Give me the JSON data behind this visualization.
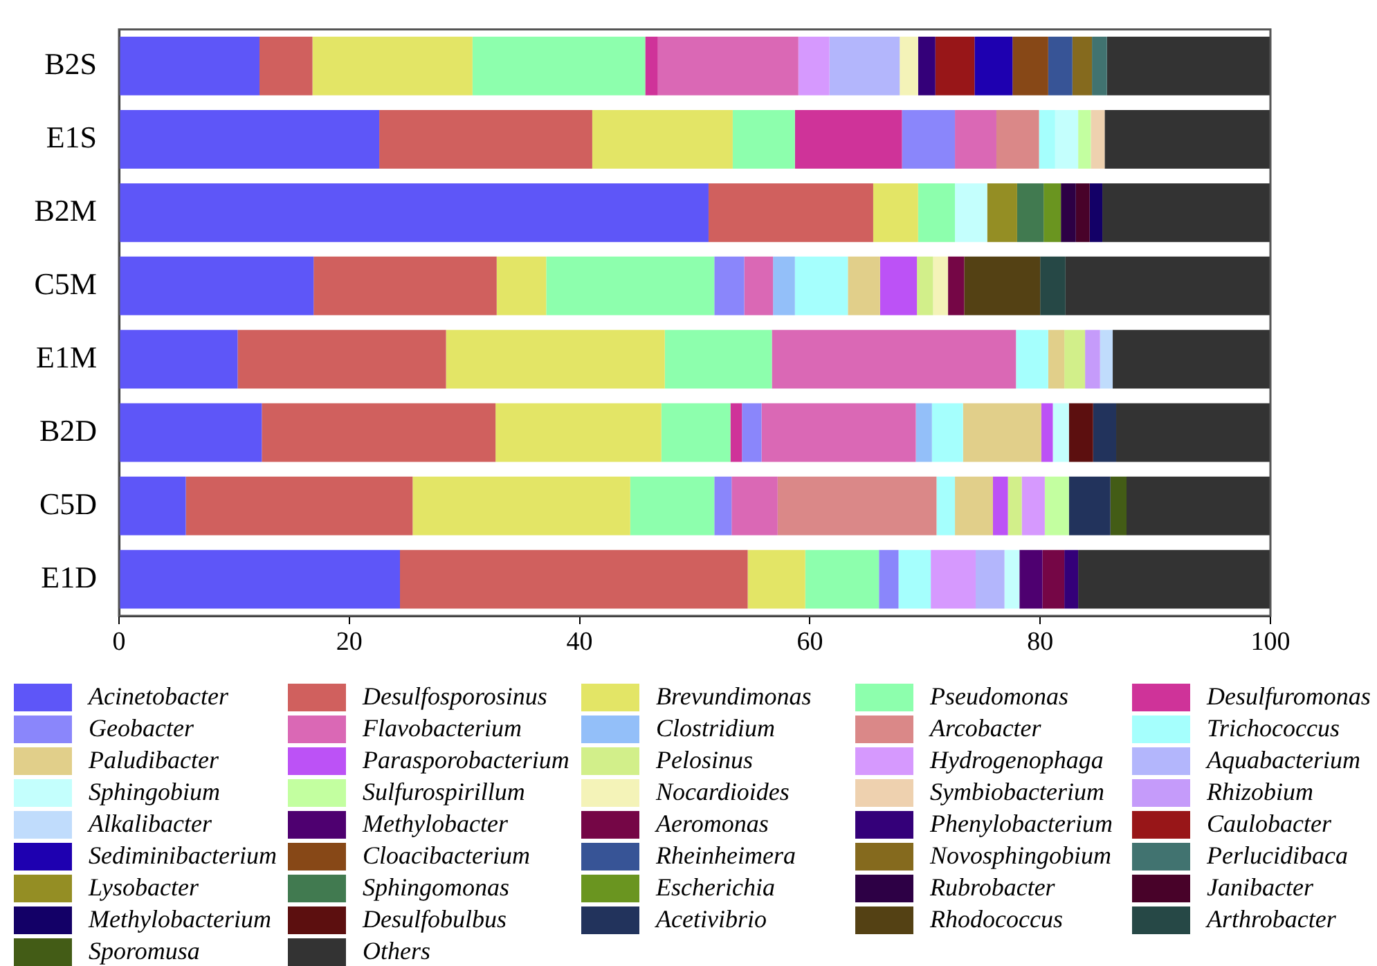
{
  "chart_data": {
    "type": "bar",
    "orientation": "horizontal",
    "stacked": true,
    "legend": "bottom",
    "categories": [
      "B2S",
      "E1S",
      "B2M",
      "C5M",
      "E1M",
      "B2D",
      "C5D",
      "E1D"
    ],
    "xlim": [
      0,
      100
    ],
    "xticks": [
      0,
      20,
      40,
      60,
      80,
      100
    ],
    "series": [
      {
        "name": "Acinetobacter",
        "color": "#5e56f8",
        "values": [
          12.2,
          22.6,
          51.2,
          16.9,
          10.3,
          12.4,
          5.8,
          24.4
        ]
      },
      {
        "name": "Desulfosporosinus",
        "color": "#d0605e",
        "values": [
          4.6,
          18.5,
          14.3,
          15.9,
          18.1,
          20.3,
          19.7,
          30.2
        ]
      },
      {
        "name": "Brevundimonas",
        "color": "#e3e566",
        "values": [
          13.9,
          12.2,
          3.9,
          4.3,
          19.0,
          14.4,
          18.9,
          5.0
        ]
      },
      {
        "name": "Pseudomonas",
        "color": "#8dffad",
        "values": [
          15.0,
          5.4,
          3.2,
          14.6,
          9.3,
          6.0,
          7.3,
          6.4
        ]
      },
      {
        "name": "Desulfuromonas",
        "color": "#cf3399",
        "values": [
          1.1,
          9.3,
          null,
          null,
          null,
          1.0,
          null,
          null
        ]
      },
      {
        "name": "Geobacter",
        "color": "#8a86fb",
        "values": [
          null,
          4.6,
          null,
          2.6,
          null,
          1.7,
          1.5,
          1.7
        ]
      },
      {
        "name": "Flavobacterium",
        "color": "#da68b5",
        "values": [
          12.2,
          3.6,
          null,
          2.5,
          21.2,
          13.4,
          4.0,
          null
        ]
      },
      {
        "name": "Clostridium",
        "color": "#93bff9",
        "values": [
          null,
          null,
          null,
          1.9,
          null,
          1.4,
          null,
          null
        ]
      },
      {
        "name": "Arcobacter",
        "color": "#da8888",
        "values": [
          null,
          3.7,
          null,
          null,
          null,
          null,
          13.8,
          null
        ]
      },
      {
        "name": "Trichococcus",
        "color": "#a5fffd",
        "values": [
          null,
          1.4,
          null,
          4.6,
          2.8,
          2.7,
          1.6,
          2.8
        ]
      },
      {
        "name": "Paludibacter",
        "color": "#e1cf8a",
        "values": [
          null,
          null,
          null,
          2.8,
          1.4,
          6.8,
          3.3,
          null
        ]
      },
      {
        "name": "Parasporobacterium",
        "color": "#bc52f6",
        "values": [
          null,
          null,
          null,
          3.2,
          null,
          1.0,
          1.3,
          null
        ]
      },
      {
        "name": "Pelosinus",
        "color": "#d2ef8a",
        "values": [
          null,
          null,
          null,
          1.4,
          1.8,
          null,
          1.2,
          null
        ]
      },
      {
        "name": "Hydrogenophaga",
        "color": "#d699fe",
        "values": [
          2.7,
          null,
          null,
          null,
          null,
          null,
          2.0,
          3.9
        ]
      },
      {
        "name": "Aquabacterium",
        "color": "#b3b6fc",
        "values": [
          6.1,
          null,
          null,
          null,
          null,
          null,
          null,
          2.5
        ]
      },
      {
        "name": "Sphingobium",
        "color": "#c4fffd",
        "values": [
          null,
          2.0,
          2.8,
          null,
          null,
          1.4,
          null,
          1.3
        ]
      },
      {
        "name": "Sulfurospirillum",
        "color": "#c3ffa0",
        "values": [
          null,
          1.1,
          null,
          null,
          null,
          null,
          2.1,
          null
        ]
      },
      {
        "name": "Nocardioides",
        "color": "#f4f3b8",
        "values": [
          1.6,
          null,
          null,
          1.3,
          null,
          null,
          null,
          null
        ]
      },
      {
        "name": "Symbiobacterium",
        "color": "#eed1af",
        "values": [
          null,
          1.2,
          null,
          null,
          null,
          null,
          null,
          null
        ]
      },
      {
        "name": "Rhizobium",
        "color": "#c59bfa",
        "values": [
          null,
          null,
          null,
          null,
          1.3,
          null,
          null,
          null
        ]
      },
      {
        "name": "Alkalibacter",
        "color": "#c0dcfc",
        "values": [
          null,
          null,
          null,
          null,
          1.1,
          null,
          null,
          null
        ]
      },
      {
        "name": "Methylobacter",
        "color": "#4e0070",
        "values": [
          null,
          null,
          null,
          null,
          null,
          null,
          null,
          2.0
        ]
      },
      {
        "name": "Aeromonas",
        "color": "#750646",
        "values": [
          null,
          null,
          null,
          1.4,
          null,
          null,
          null,
          1.9
        ]
      },
      {
        "name": "Phenylobacterium",
        "color": "#340079",
        "values": [
          1.5,
          null,
          null,
          null,
          null,
          null,
          null,
          1.2
        ]
      },
      {
        "name": "Caulobacter",
        "color": "#981618",
        "values": [
          3.4,
          null,
          null,
          null,
          null,
          null,
          null,
          null
        ]
      },
      {
        "name": "Sediminibacterium",
        "color": "#1e00b0",
        "values": [
          3.3,
          null,
          null,
          null,
          null,
          null,
          null,
          null
        ]
      },
      {
        "name": "Cloacibacterium",
        "color": "#874817",
        "values": [
          3.1,
          null,
          null,
          null,
          null,
          null,
          null,
          null
        ]
      },
      {
        "name": "Rheinheimera",
        "color": "#375496",
        "values": [
          2.1,
          null,
          null,
          null,
          null,
          null,
          null,
          null
        ]
      },
      {
        "name": "Novosphingobium",
        "color": "#856a1e",
        "values": [
          1.7,
          null,
          null,
          null,
          null,
          null,
          null,
          null
        ]
      },
      {
        "name": "Perlucidibaca",
        "color": "#417370",
        "values": [
          1.3,
          null,
          null,
          null,
          null,
          null,
          null,
          null
        ]
      },
      {
        "name": "Lysobacter",
        "color": "#948e24",
        "values": [
          null,
          null,
          2.6,
          null,
          null,
          null,
          null,
          null
        ]
      },
      {
        "name": "Sphingomonas",
        "color": "#417a50",
        "values": [
          null,
          null,
          2.3,
          null,
          null,
          null,
          null,
          null
        ]
      },
      {
        "name": "Escherichia",
        "color": "#6a9520",
        "values": [
          null,
          null,
          1.5,
          null,
          null,
          null,
          null,
          null
        ]
      },
      {
        "name": "Rubrobacter",
        "color": "#2d0045",
        "values": [
          null,
          null,
          1.3,
          null,
          null,
          null,
          null,
          null
        ]
      },
      {
        "name": "Janibacter",
        "color": "#480229",
        "values": [
          null,
          null,
          1.2,
          null,
          null,
          null,
          null,
          null
        ]
      },
      {
        "name": "Methylobacterium",
        "color": "#130067",
        "values": [
          null,
          null,
          1.1,
          null,
          null,
          null,
          null,
          null
        ]
      },
      {
        "name": "Desulfobulbus",
        "color": "#5c0f0f",
        "values": [
          null,
          null,
          null,
          null,
          null,
          2.1,
          null,
          null
        ]
      },
      {
        "name": "Acetivibrio",
        "color": "#22335c",
        "values": [
          null,
          null,
          null,
          null,
          null,
          2.0,
          3.6,
          null
        ]
      },
      {
        "name": "Rhodococcus",
        "color": "#544114",
        "values": [
          null,
          null,
          null,
          6.6,
          null,
          null,
          null,
          null
        ]
      },
      {
        "name": "Arthrobacter",
        "color": "#264846",
        "values": [
          null,
          null,
          null,
          2.2,
          null,
          null,
          null,
          null
        ]
      },
      {
        "name": "Sporomusa",
        "color": "#435c16",
        "values": [
          null,
          null,
          null,
          null,
          null,
          null,
          1.4,
          null
        ]
      },
      {
        "name": "Others",
        "color": "#333333",
        "values": [
          14.2,
          14.4,
          14.6,
          17.8,
          13.7,
          13.4,
          12.5,
          16.7
        ]
      }
    ]
  }
}
